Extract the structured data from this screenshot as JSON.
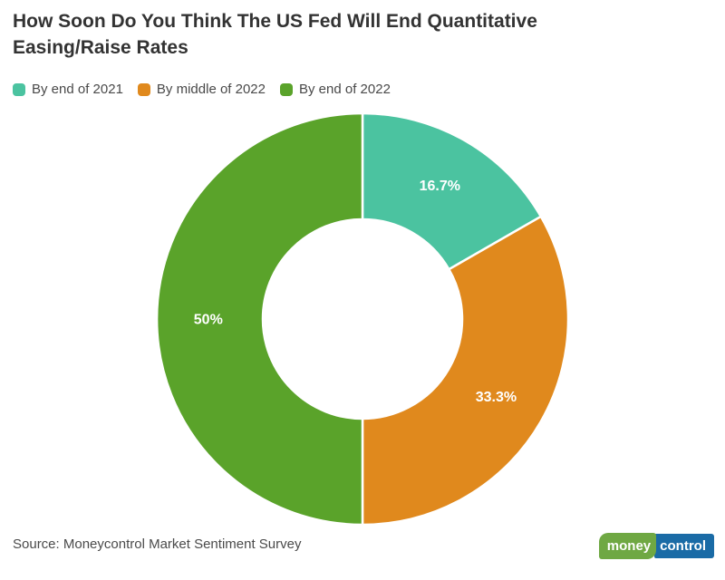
{
  "title": {
    "full": "How Soon Do You Think The US Fed Will End Quantitative Easing/Raise Rates",
    "line1": "How Soon Do You Think The US Fed Will End Quantitative",
    "line2": "Easing/Raise Rates"
  },
  "legend": {
    "items": [
      {
        "label": "By end of 2021",
        "color": "#4BC3A0"
      },
      {
        "label": "By middle of 2022",
        "color": "#E0891D"
      },
      {
        "label": "By end of 2022",
        "color": "#5AA32A"
      }
    ]
  },
  "chart_data": {
    "type": "pie",
    "subtype": "donut",
    "title": "How Soon Do You Think The US Fed Will End Quantitative Easing/Raise Rates",
    "categories": [
      "By end of 2021",
      "By middle of 2022",
      "By end of 2022"
    ],
    "values": [
      16.7,
      33.3,
      50
    ],
    "data_labels": [
      "16.7%",
      "33.3%",
      "50%"
    ],
    "colors": [
      "#4BC3A0",
      "#E0891D",
      "#5AA32A"
    ],
    "start_angle_deg": 0,
    "direction": "clockwise",
    "donut_hole_ratio": 0.485,
    "legend_position": "top-left",
    "data_label_color": "#FFFFFF",
    "slice_border_color": "#FFFFFF"
  },
  "source": {
    "text": "Source: Moneycontrol Market Sentiment Survey"
  },
  "logo": {
    "money": "money",
    "control": "control",
    "money_bg": "#6FA843",
    "control_bg": "#1A6BA6"
  }
}
